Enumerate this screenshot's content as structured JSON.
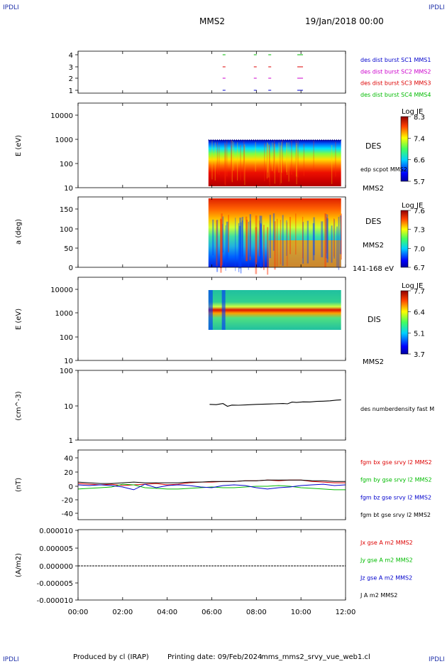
{
  "header": {
    "corner_tl": "IPDLI",
    "corner_tr": "IPDLI",
    "corner_bl": "IPDLI",
    "corner_br": "IPDLI",
    "spacecraft": "MMS2",
    "date": "19/Jan/2018 00:00"
  },
  "footer": {
    "produced": "Produced by cl (IRAP)",
    "printing": "Printing date: 09/Feb/2024",
    "file": "mms_mms2_srvy_vue_web1.cl"
  },
  "time_axis": {
    "ticks": [
      "00:00",
      "02:00",
      "04:00",
      "06:00",
      "08:00",
      "10:00",
      "12:00"
    ],
    "hours": [
      0,
      2,
      4,
      6,
      8,
      10,
      12
    ]
  },
  "colors": {
    "bx": "#dd0000",
    "by": "#00bb00",
    "bz": "#0000cc",
    "bt": "#000000",
    "sc1": "#0000cc",
    "sc2": "#cc00cc",
    "sc3": "#dd0000",
    "sc4": "#00bb00"
  },
  "chart_data": [
    {
      "type": "scatter",
      "panel": "burst-availability",
      "yticks": [
        "4",
        "3",
        "2",
        "1"
      ],
      "ylim": [
        0.5,
        4.5
      ],
      "legend": [
        "des dist burst SC1 MMS1",
        "des dist burst SC2 MMS2",
        "des dist burst SC3 MMS3",
        "des dist burst SC4 MMS4"
      ],
      "series": [
        {
          "name": "des dist burst SC1 MMS1",
          "level": 1,
          "x": [
            6.55,
            7.95,
            8.6,
            9.9
          ]
        },
        {
          "name": "des dist burst SC2 MMS2",
          "level": 2,
          "x": [
            6.55,
            7.95,
            8.6,
            9.9
          ]
        },
        {
          "name": "des dist burst SC3 MMS3",
          "level": 3,
          "x": [
            6.55,
            7.95,
            8.6,
            9.9
          ]
        },
        {
          "name": "des dist burst SC4 MMS4",
          "level": 4,
          "x": [
            6.55,
            7.95,
            8.6,
            9.9
          ]
        }
      ]
    },
    {
      "type": "heatmap",
      "panel": "des-energy-spectrogram",
      "ylabel": "E (eV)",
      "yticks": [
        "10000",
        "1000",
        "100",
        "10"
      ],
      "ylog": true,
      "ylim": [
        10,
        20000
      ],
      "xrange": [
        5.85,
        11.8
      ],
      "label_right": "DES",
      "label_right2": "edp scpot MMS2",
      "label_bottom": "MMS2",
      "colorbar": {
        "title": "Log JE",
        "ticks": [
          "8.3",
          "7.4",
          "6.6",
          "5.7"
        ]
      }
    },
    {
      "type": "heatmap",
      "panel": "des-pitch-angle",
      "ylabel": "a (deg)",
      "yticks": [
        "150",
        "100",
        "50",
        "0"
      ],
      "ylim": [
        0,
        180
      ],
      "xrange": [
        5.85,
        11.8
      ],
      "label_right": "DES",
      "label_right2": "MMS2",
      "label_bottom": "141-168 eV",
      "colorbar": {
        "title": "Log JE",
        "ticks": [
          "7.6",
          "7.3",
          "7.0",
          "6.7"
        ]
      }
    },
    {
      "type": "heatmap",
      "panel": "dis-energy-spectrogram",
      "ylabel": "E (eV)",
      "yticks": [
        "10000",
        "1000",
        "100",
        "10"
      ],
      "ylog": true,
      "ylim": [
        10,
        20000
      ],
      "xrange": [
        5.85,
        11.8
      ],
      "label_right": "DIS",
      "label_bottom": "MMS2",
      "colorbar": {
        "title": "Log JE",
        "ticks": [
          "7.7",
          "6.4",
          "5.1",
          "3.7"
        ]
      }
    },
    {
      "type": "line",
      "panel": "density",
      "ylabel": "(cm^-3)",
      "yticks": [
        "100",
        "10",
        "1"
      ],
      "ylog": true,
      "ylim": [
        1,
        100
      ],
      "legend": [
        "des numberdensity fast M"
      ],
      "series": [
        {
          "name": "des numberdensity fast M",
          "x": [
            5.9,
            6.2,
            6.5,
            6.7,
            6.9,
            7.2,
            7.6,
            8.0,
            8.4,
            8.8,
            9.2,
            9.4,
            9.6,
            9.8,
            10.1,
            10.4,
            10.7,
            11.0,
            11.3,
            11.6,
            11.8
          ],
          "y": [
            10.6,
            10.4,
            11.2,
            9.3,
            10.1,
            10.0,
            10.3,
            10.6,
            10.8,
            11.0,
            11.2,
            11.0,
            12.3,
            12.0,
            12.5,
            12.4,
            12.9,
            13.1,
            13.4,
            14.0,
            14.3
          ]
        }
      ]
    },
    {
      "type": "line",
      "panel": "magnetic-field",
      "ylabel": "(nT)",
      "yticks": [
        "40",
        "20",
        "0",
        "-20",
        "-40"
      ],
      "ylim": [
        -50,
        50
      ],
      "legend": [
        "fgm bx gse srvy l2 MMS2",
        "fgm by gse srvy l2 MMS2",
        "fgm bz gse srvy l2 MMS2",
        "fgm bt gse srvy l2 MMS2"
      ],
      "series": [
        {
          "name": "fgm bx gse srvy l2 MMS2",
          "x": [
            0,
            0.5,
            1,
            1.5,
            2,
            2.5,
            3,
            3.5,
            4,
            4.5,
            5,
            5.5,
            6,
            6.5,
            7,
            7.5,
            8,
            8.5,
            9,
            9.5,
            10,
            10.5,
            11,
            11.5,
            12
          ],
          "y": [
            4,
            3,
            2,
            3,
            1,
            2,
            3,
            4,
            2,
            3,
            5,
            6,
            6,
            7,
            7,
            8,
            8,
            9,
            8,
            9,
            9,
            7,
            6,
            5,
            5
          ]
        },
        {
          "name": "fgm by gse srvy l2 MMS2",
          "x": [
            0,
            0.5,
            1,
            1.5,
            2,
            2.5,
            3,
            3.5,
            4,
            4.5,
            5,
            5.5,
            6,
            6.5,
            7,
            7.5,
            8,
            8.5,
            9,
            9.5,
            10,
            10.5,
            11,
            11.5,
            12
          ],
          "y": [
            -4,
            -3,
            -2,
            -1,
            3,
            2,
            -2,
            -3,
            -4,
            -4,
            -3,
            -2,
            -1,
            -2,
            -2,
            -1,
            0,
            0,
            1,
            0,
            -2,
            -3,
            -4,
            -5,
            -5
          ]
        },
        {
          "name": "fgm bz gse srvy l2 MMS2",
          "x": [
            0,
            0.5,
            1,
            1.5,
            2,
            2.5,
            3,
            3.5,
            4,
            4.5,
            5,
            5.5,
            6,
            6.5,
            7,
            7.5,
            8,
            8.5,
            9,
            9.5,
            10,
            10.5,
            11,
            11.5,
            12
          ],
          "y": [
            2,
            1,
            2,
            1,
            -1,
            -5,
            3,
            -2,
            1,
            2,
            1,
            -1,
            -2,
            1,
            2,
            1,
            -2,
            -4,
            -2,
            -1,
            1,
            2,
            3,
            1,
            2
          ]
        },
        {
          "name": "fgm bt gse srvy l2 MMS2",
          "x": [
            0,
            0.5,
            1,
            1.5,
            2,
            2.5,
            3,
            3.5,
            4,
            4.5,
            5,
            5.5,
            6,
            6.5,
            7,
            7.5,
            8,
            8.5,
            9,
            9.5,
            10,
            10.5,
            11,
            11.5,
            12
          ],
          "y": [
            6,
            5,
            4,
            4,
            5,
            6,
            5,
            5,
            5,
            5,
            6,
            6,
            7,
            7,
            7,
            8,
            8,
            9,
            9,
            9,
            9,
            8,
            8,
            7,
            7
          ]
        }
      ]
    },
    {
      "type": "line",
      "panel": "current-density",
      "ylabel": "(A/m2)",
      "yticks": [
        "0.000010",
        "0.000005",
        "0.000000",
        "-0.000005",
        "-0.000010"
      ],
      "ylim": [
        -1e-05,
        1e-05
      ],
      "legend": [
        "Jx gse A m2 MMS2",
        "Jy gse A m2 MMS2",
        "Jz gse A m2 MMS2",
        "J A m2 MMS2"
      ],
      "series": [
        {
          "name": "J A m2 MMS2",
          "x": [
            0,
            12
          ],
          "y": [
            0,
            0
          ]
        }
      ]
    }
  ]
}
